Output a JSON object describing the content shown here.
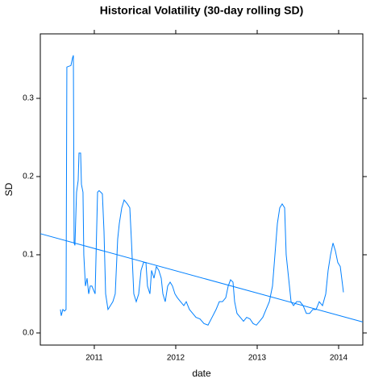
{
  "chart_data": {
    "type": "line",
    "title": "Historical Volatility (30-day rolling SD)",
    "xlabel": "date",
    "ylabel": "SD",
    "xlim": [
      2010.337,
      2014.297
    ],
    "ylim": [
      -0.0155,
      0.3825
    ],
    "xticks": [
      2011,
      2012,
      2013,
      2014
    ],
    "yticks": [
      {
        "value": 0,
        "label": "0.0"
      },
      0.1,
      0.2,
      0.3
    ],
    "series": [
      {
        "color": "#0080ff",
        "x": [
          2010.584,
          2010.594,
          2010.614,
          2010.634,
          2010.653,
          2010.663,
          2010.713,
          2010.733,
          2010.743,
          2010.752,
          2010.762,
          2010.782,
          2010.802,
          2010.812,
          2010.832,
          2010.842,
          2010.861,
          2010.871,
          2010.891,
          2010.911,
          2010.931,
          2010.95,
          2010.97,
          2010.99,
          2011.01,
          2011.04,
          2011.059,
          2011.099,
          2011.119,
          2011.139,
          2011.168,
          2011.198,
          2011.228,
          2011.257,
          2011.287,
          2011.307,
          2011.337,
          2011.366,
          2011.406,
          2011.436,
          2011.455,
          2011.485,
          2011.515,
          2011.545,
          2011.574,
          2011.604,
          2011.634,
          2011.653,
          2011.683,
          2011.703,
          2011.733,
          2011.762,
          2011.792,
          2011.822,
          2011.842,
          2011.871,
          2011.901,
          2011.931,
          2011.96,
          2011.99,
          2012.02,
          2012.059,
          2012.099,
          2012.129,
          2012.168,
          2012.208,
          2012.248,
          2012.297,
          2012.347,
          2012.396,
          2012.446,
          2012.495,
          2012.535,
          2012.574,
          2012.614,
          2012.644,
          2012.673,
          2012.703,
          2012.723,
          2012.752,
          2012.792,
          2012.832,
          2012.871,
          2012.911,
          2012.95,
          2012.99,
          2013.03,
          2013.069,
          2013.109,
          2013.149,
          2013.188,
          2013.218,
          2013.248,
          2013.277,
          2013.307,
          2013.337,
          2013.356,
          2013.386,
          2013.416,
          2013.446,
          2013.485,
          2013.525,
          2013.564,
          2013.604,
          2013.644,
          2013.683,
          2013.723,
          2013.762,
          2013.802,
          2013.842,
          2013.871,
          2013.901,
          2013.931,
          2013.96,
          2013.99,
          2014.02,
          2014.05,
          2014.059
        ],
        "values": [
          0.03,
          0.022,
          0.03,
          0.028,
          0.03,
          0.34,
          0.342,
          0.352,
          0.355,
          0.115,
          0.112,
          0.18,
          0.195,
          0.23,
          0.23,
          0.19,
          0.18,
          0.1,
          0.06,
          0.07,
          0.05,
          0.06,
          0.06,
          0.055,
          0.05,
          0.18,
          0.182,
          0.178,
          0.13,
          0.05,
          0.03,
          0.035,
          0.04,
          0.05,
          0.12,
          0.14,
          0.16,
          0.17,
          0.165,
          0.16,
          0.12,
          0.05,
          0.04,
          0.05,
          0.08,
          0.09,
          0.09,
          0.06,
          0.05,
          0.08,
          0.07,
          0.085,
          0.08,
          0.07,
          0.05,
          0.04,
          0.06,
          0.065,
          0.06,
          0.05,
          0.045,
          0.04,
          0.035,
          0.04,
          0.03,
          0.025,
          0.02,
          0.018,
          0.012,
          0.01,
          0.02,
          0.03,
          0.04,
          0.04,
          0.045,
          0.06,
          0.068,
          0.065,
          0.04,
          0.025,
          0.02,
          0.015,
          0.02,
          0.018,
          0.012,
          0.01,
          0.015,
          0.02,
          0.03,
          0.04,
          0.06,
          0.1,
          0.14,
          0.16,
          0.165,
          0.16,
          0.1,
          0.07,
          0.04,
          0.035,
          0.04,
          0.04,
          0.035,
          0.025,
          0.025,
          0.03,
          0.03,
          0.04,
          0.035,
          0.05,
          0.08,
          0.1,
          0.115,
          0.105,
          0.09,
          0.085,
          0.06,
          0.052
        ]
      },
      {
        "color": "#0080ff",
        "x": [
          2010.337,
          2014.297
        ],
        "values": [
          0.127,
          0.014
        ]
      }
    ]
  }
}
